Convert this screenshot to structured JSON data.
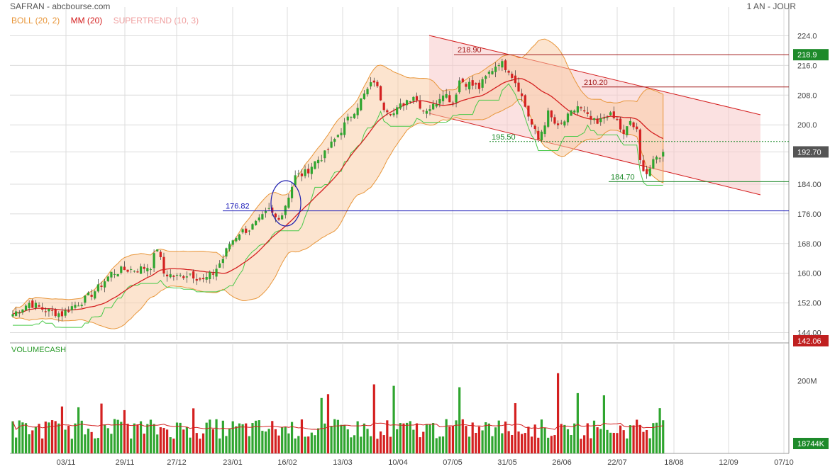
{
  "header": {
    "title": "SAFRAN - abcbourse.com",
    "period": "1 AN - JOUR"
  },
  "indicators": [
    {
      "label": "BOLL (20, 2)",
      "color": "#e8963a"
    },
    {
      "label": "MM (20)",
      "color": "#d42020"
    },
    {
      "label": "SUPERTREND (10, 3)",
      "color": "#f0a0a0"
    }
  ],
  "volume_label": "VOLUMECASH",
  "chart_data": {
    "type": "candlestick",
    "ylim": [
      142,
      226
    ],
    "y_ticks": [
      "224.0",
      "216.0",
      "208.0",
      "200.0",
      "192.70",
      "184.00",
      "176.00",
      "168.00",
      "160.00",
      "152.00",
      "144.00"
    ],
    "y_tick_values": [
      224,
      216,
      208,
      200,
      192.7,
      184,
      176,
      168,
      160,
      152,
      144
    ],
    "x_ticks": [
      "03/11",
      "29/11",
      "27/12",
      "23/01",
      "16/02",
      "13/03",
      "10/04",
      "07/05",
      "31/05",
      "26/06",
      "22/07",
      "18/08",
      "12/09",
      "07/10"
    ],
    "price_badges": [
      {
        "value": "218.9",
        "color": "#1d8a2a"
      },
      {
        "value": "192.70",
        "color": "#555555"
      },
      {
        "value": "142.06",
        "color": "#c02020"
      }
    ],
    "annotations": [
      "218.90",
      "210.20",
      "195.50",
      "184.70",
      "176.82"
    ],
    "closing_price": 192.7,
    "price_anchors": [
      [
        0,
        149
      ],
      [
        5,
        152
      ],
      [
        10,
        150
      ],
      [
        15,
        149
      ],
      [
        18,
        151
      ],
      [
        22,
        153
      ],
      [
        26,
        156
      ],
      [
        30,
        160
      ],
      [
        34,
        161
      ],
      [
        38,
        161
      ],
      [
        42,
        162
      ],
      [
        44,
        167
      ],
      [
        46,
        160
      ],
      [
        50,
        159
      ],
      [
        54,
        160
      ],
      [
        58,
        158
      ],
      [
        61,
        160
      ],
      [
        64,
        164
      ],
      [
        66,
        168
      ],
      [
        69,
        171
      ],
      [
        72,
        172
      ],
      [
        75,
        174
      ],
      [
        78,
        177
      ],
      [
        80,
        175
      ],
      [
        82,
        176
      ],
      [
        84,
        181
      ],
      [
        86,
        186
      ],
      [
        89,
        187
      ],
      [
        92,
        190
      ],
      [
        95,
        192
      ],
      [
        98,
        196
      ],
      [
        101,
        200
      ],
      [
        104,
        204
      ],
      [
        107,
        208
      ],
      [
        110,
        212
      ],
      [
        113,
        205
      ],
      [
        116,
        203
      ],
      [
        119,
        206
      ],
      [
        122,
        208
      ],
      [
        125,
        204
      ],
      [
        128,
        205
      ],
      [
        131,
        209
      ],
      [
        134,
        206
      ],
      [
        136,
        212
      ],
      [
        139,
        211
      ],
      [
        142,
        210
      ],
      [
        145,
        214
      ],
      [
        148,
        217
      ],
      [
        151,
        215
      ],
      [
        154,
        210
      ],
      [
        156,
        205
      ],
      [
        158,
        200
      ],
      [
        160,
        196
      ],
      [
        163,
        203
      ],
      [
        166,
        199
      ],
      [
        169,
        202
      ],
      [
        172,
        205
      ],
      [
        175,
        202
      ],
      [
        178,
        200
      ],
      [
        181,
        203
      ],
      [
        184,
        201
      ],
      [
        186,
        197
      ],
      [
        188,
        201
      ],
      [
        190,
        198
      ],
      [
        191,
        190
      ],
      [
        193,
        187
      ],
      [
        196,
        191
      ],
      [
        198,
        192.7
      ]
    ],
    "volume": {
      "ylim": [
        0,
        300
      ],
      "y_ticks": [
        "200M"
      ],
      "y_tick_values": [
        200
      ],
      "last_value_badge": "18744K"
    }
  }
}
